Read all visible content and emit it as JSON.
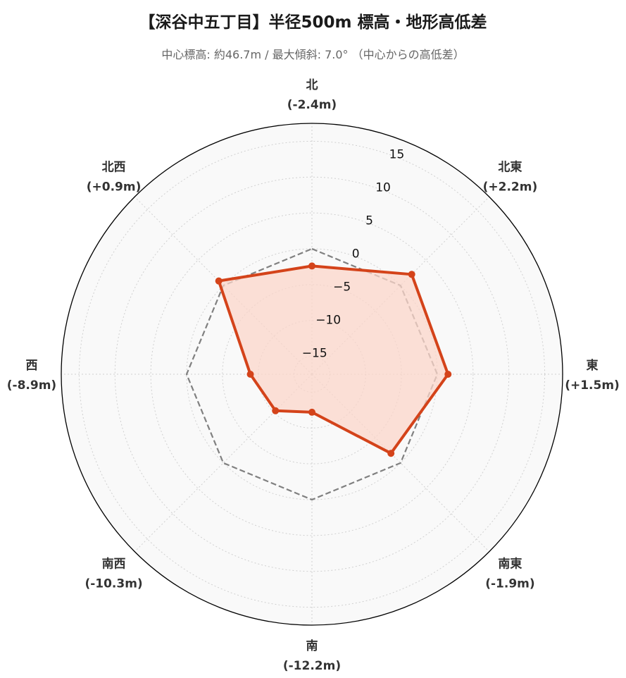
{
  "title": "【深谷中五丁目】半径500m 標高・地形高低差",
  "subtitle": "中心標高: 約46.7m / 最大傾斜: 7.0° （中心からの高低差）",
  "colors": {
    "series": "#d4431a",
    "series_fill": "#fbd5c9",
    "reference": "#808080",
    "plot_background": "#f9f9f9",
    "grid": "#d0d0d0",
    "outline": "#000000"
  },
  "chart_data": {
    "type": "radar",
    "title": "【深谷中五丁目】半径500m 標高・地形高低差",
    "subtitle": "中心標高: 約46.7m / 最大傾斜: 7.0° （中心からの高低差）",
    "categories": [
      "北",
      "北東",
      "東",
      "南東",
      "南",
      "南西",
      "西",
      "北西"
    ],
    "category_values": [
      "(-2.4m)",
      "(+2.2m)",
      "(+1.5m)",
      "(-1.9m)",
      "(-12.2m)",
      "(-10.3m)",
      "(-8.9m)",
      "(+0.9m)"
    ],
    "series": [
      {
        "values": [
          -2.4,
          2.2,
          1.5,
          -1.9,
          -12.2,
          -10.3,
          -8.9,
          0.9
        ]
      },
      {
        "values": [
          0,
          0,
          0,
          0,
          0,
          0,
          0,
          0
        ]
      }
    ],
    "rlim": [
      -17.5,
      17.5
    ],
    "rticks": [
      -15,
      -10,
      -5,
      0,
      5,
      10,
      15
    ],
    "rtick_labels": [
      "−15",
      "−10",
      "−5",
      "0",
      "5",
      "10",
      "15"
    ],
    "grid": true,
    "direction": "clockwise",
    "start_angle": "north"
  }
}
